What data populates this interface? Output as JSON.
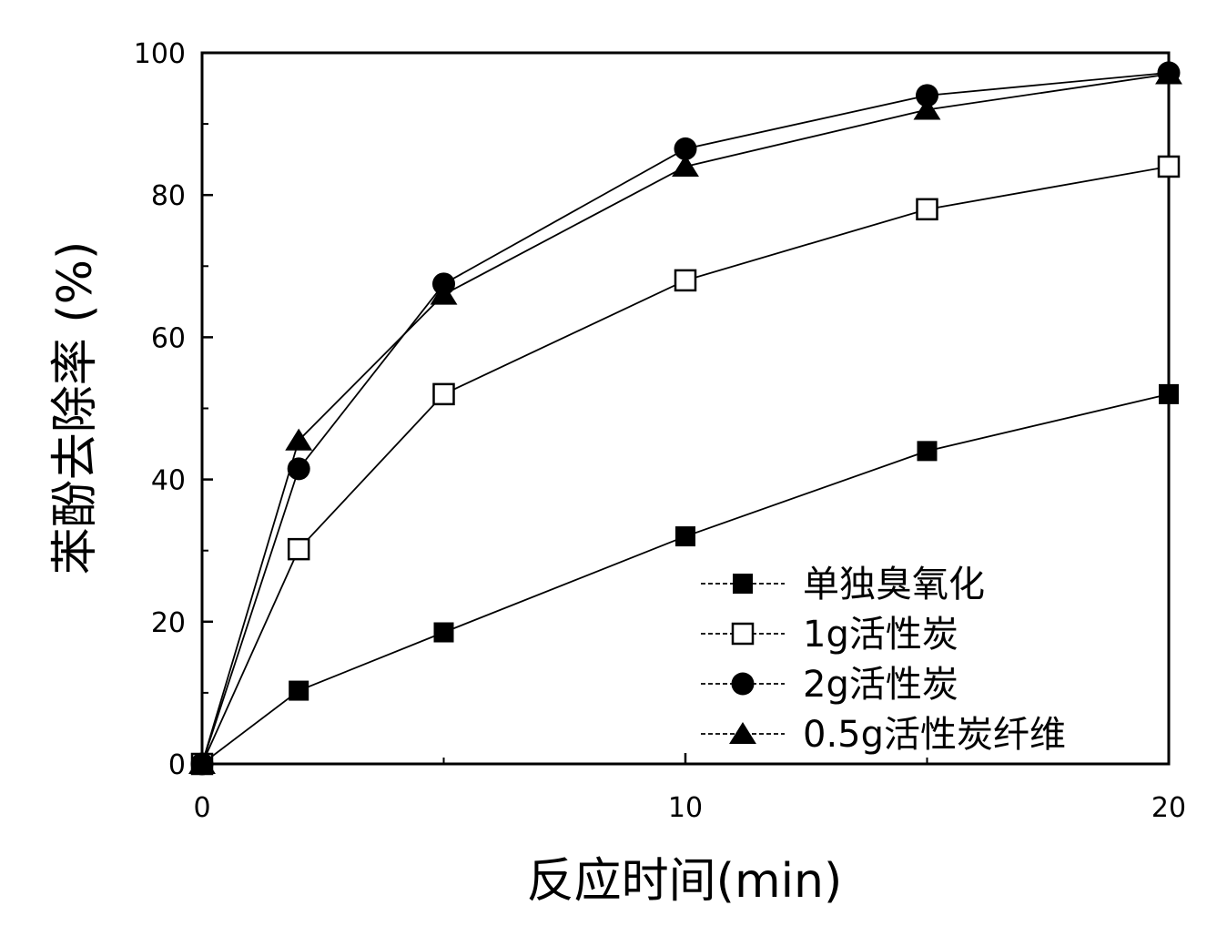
{
  "chart_data": {
    "type": "line",
    "title": "",
    "xlabel": "反应时间(min)",
    "ylabel": "苯酚去除率 (%)",
    "xlim": [
      0,
      20
    ],
    "ylim": [
      0,
      100
    ],
    "x_ticks": [
      0,
      10,
      20
    ],
    "y_ticks": [
      0,
      20,
      40,
      60,
      80,
      100
    ],
    "grid": false,
    "legend_position": "bottom-right",
    "x": [
      0,
      2,
      5,
      10,
      15,
      20
    ],
    "series": [
      {
        "name": "单独臭氧化",
        "marker": "square-filled",
        "values": [
          0,
          10.3,
          18.5,
          32,
          44,
          52
        ]
      },
      {
        "name": "1g活性炭",
        "marker": "square-open",
        "values": [
          0,
          30.2,
          52,
          68,
          78,
          84
        ]
      },
      {
        "name": "2g活性炭",
        "marker": "circle-filled",
        "values": [
          0,
          41.5,
          67.5,
          86.5,
          94,
          97.2
        ]
      },
      {
        "name": "0.5g活性炭纤维",
        "marker": "triangle-filled",
        "values": [
          0,
          45.5,
          66,
          84,
          92,
          97
        ]
      }
    ]
  }
}
